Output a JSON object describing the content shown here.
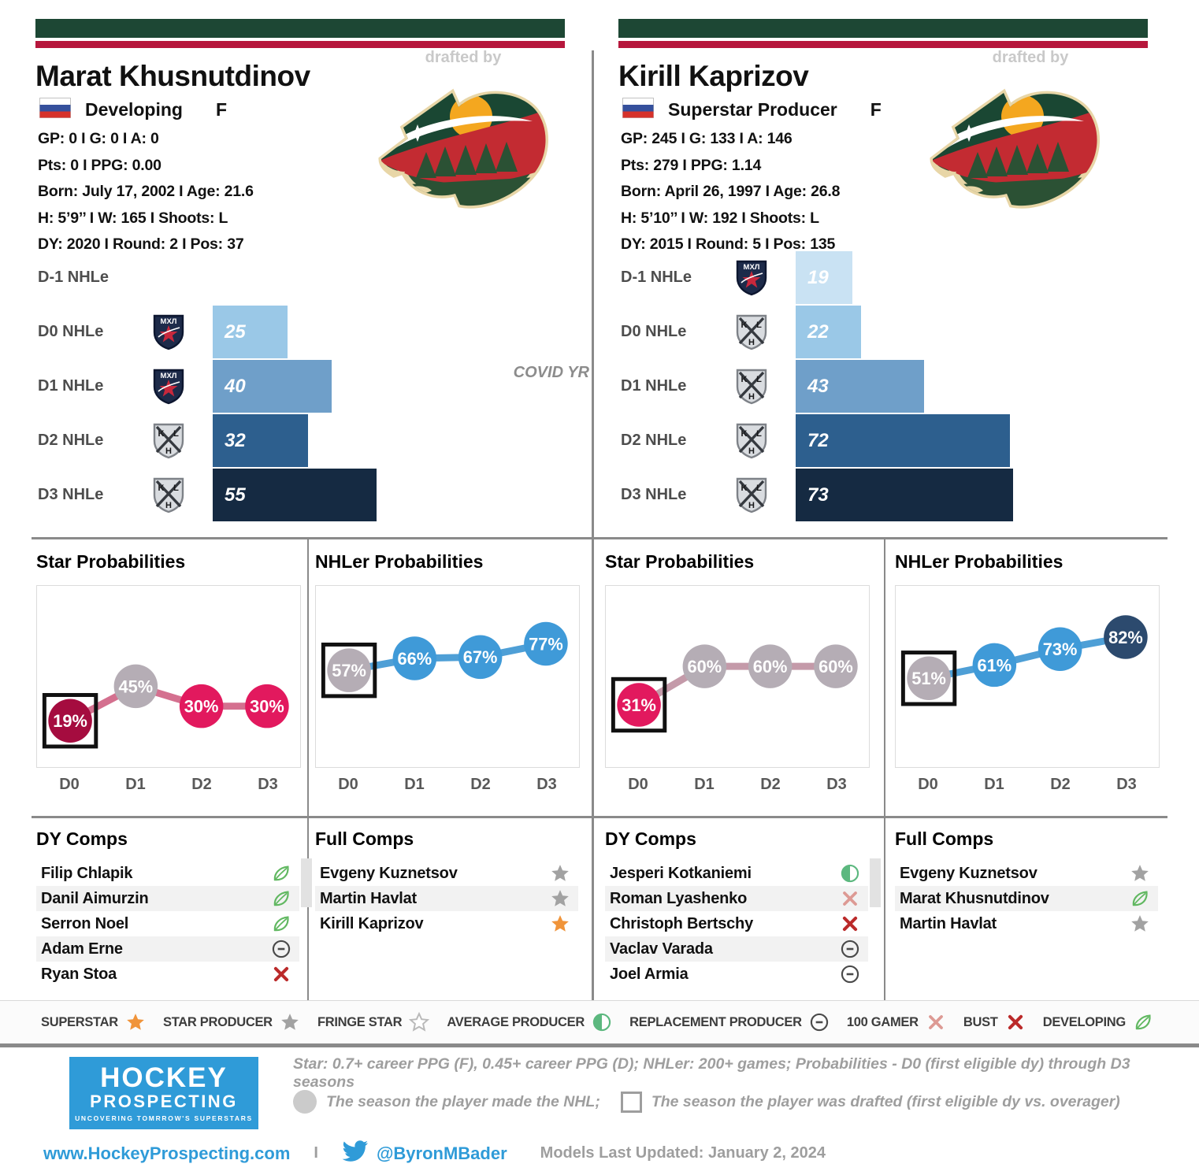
{
  "players": {
    "left": {
      "drafted_by_label": "drafted by",
      "name": "Marat Khusnutdinov",
      "flag": "russia-flag",
      "status": "Developing",
      "position": "F",
      "stats": [
        "GP: 0 I G: 0 I A: 0",
        "Pts: 0 I PPG: 0.00",
        "Born: July 17, 2002 I Age: 21.6",
        "H: 5’9’’ I W: 165 I Shoots: L",
        "DY: 2020 I Round: 2 I Pos: 37"
      ],
      "dy_comps": {
        "title": "DY Comps",
        "rows": [
          {
            "name": "Filip Chlapik",
            "icon": "leaf"
          },
          {
            "name": "Danil Aimurzin",
            "icon": "leaf"
          },
          {
            "name": "Serron Noel",
            "icon": "leaf"
          },
          {
            "name": "Adam Erne",
            "icon": "circle-minus"
          },
          {
            "name": "Ryan Stoa",
            "icon": "x-dark"
          }
        ]
      },
      "full_comps": {
        "title": "Full Comps",
        "rows": [
          {
            "name": "Evgeny Kuznetsov",
            "icon": "star-gray"
          },
          {
            "name": "Martin Havlat",
            "icon": "star-gray"
          },
          {
            "name": "Kirill Kaprizov",
            "icon": "star-orange"
          }
        ]
      }
    },
    "right": {
      "drafted_by_label": "drafted by",
      "name": "Kirill Kaprizov",
      "flag": "russia-flag",
      "status": "Superstar Producer",
      "position": "F",
      "stats": [
        "GP: 245 I G: 133 I A: 146",
        "Pts: 279 I PPG: 1.14",
        "Born: April 26, 1997 I Age: 26.8",
        "H: 5’10’’ I W: 192 I Shoots: L",
        "DY: 2015 I Round: 5 I Pos: 135"
      ],
      "dy_comps": {
        "title": "DY Comps",
        "rows": [
          {
            "name": "Jesperi Kotkaniemi",
            "icon": "half-circle"
          },
          {
            "name": "Roman Lyashenko",
            "icon": "x-light"
          },
          {
            "name": "Christoph Bertschy",
            "icon": "x-dark"
          },
          {
            "name": "Vaclav Varada",
            "icon": "circle-minus"
          },
          {
            "name": "Joel Armia",
            "icon": "circle-minus"
          }
        ]
      },
      "full_comps": {
        "title": "Full Comps",
        "rows": [
          {
            "name": "Evgeny Kuznetsov",
            "icon": "star-gray"
          },
          {
            "name": "Marat Khusnutdinov",
            "icon": "leaf"
          },
          {
            "name": "Martin Havlat",
            "icon": "star-gray"
          }
        ]
      }
    }
  },
  "chart_data": [
    {
      "id": "left_nhle",
      "type": "bar",
      "title": "Marat Khusnutdinov NHLe",
      "categories": [
        "D-1 NHLe",
        "D0 NHLe",
        "D1 NHLe",
        "D2 NHLe",
        "D3 NHLe"
      ],
      "values": [
        null,
        25,
        40,
        32,
        55
      ],
      "leagues": [
        null,
        "mhl",
        "mhl",
        "khl",
        "khl"
      ],
      "colors": [
        null,
        "#9ac8e7",
        "#6f9fc9",
        "#2d5f8e",
        "#152a42"
      ],
      "annotation": "COVID YR",
      "xlim": [
        0,
        120
      ],
      "grid": false
    },
    {
      "id": "right_nhle",
      "type": "bar",
      "title": "Kirill Kaprizov NHLe",
      "categories": [
        "D-1 NHLe",
        "D0 NHLe",
        "D1 NHLe",
        "D2 NHLe",
        "D3 NHLe"
      ],
      "values": [
        19,
        22,
        43,
        72,
        73
      ],
      "leagues": [
        "mhl",
        "khl",
        "khl",
        "khl",
        "khl"
      ],
      "colors": [
        "#c9e2f3",
        "#9ac8e7",
        "#6f9fc9",
        "#2d5f8e",
        "#152a42"
      ],
      "annotation": null,
      "xlim": [
        0,
        120
      ],
      "grid": false
    },
    {
      "id": "left_star",
      "type": "line",
      "title": "Star Probabilities",
      "x": [
        "D0",
        "D1",
        "D2",
        "D3"
      ],
      "values": [
        19,
        45,
        30,
        30
      ],
      "point_colors": [
        "#a50c3f",
        "#b5adb5",
        "#e2195e",
        "#e2195e"
      ],
      "boxed_index": 0,
      "line_color": "#d4708f",
      "ylim": [
        0,
        100
      ],
      "unit": "%"
    },
    {
      "id": "left_nhler",
      "type": "line",
      "title": "NHLer Probabilities",
      "x": [
        "D0",
        "D1",
        "D2",
        "D3"
      ],
      "values": [
        57,
        66,
        67,
        77
      ],
      "point_colors": [
        "#b5adb5",
        "#3f9ad8",
        "#3f9ad8",
        "#3f9ad8"
      ],
      "boxed_index": 0,
      "line_color": "#4e9fd6",
      "ylim": [
        0,
        100
      ],
      "unit": "%"
    },
    {
      "id": "right_star",
      "type": "line",
      "title": "Star Probabilities",
      "x": [
        "D0",
        "D1",
        "D2",
        "D3"
      ],
      "values": [
        31,
        60,
        60,
        60
      ],
      "point_colors": [
        "#e2195e",
        "#b5adb5",
        "#b5adb5",
        "#b5adb5"
      ],
      "boxed_index": 0,
      "line_color": "#c49aa9",
      "ylim": [
        0,
        100
      ],
      "unit": "%"
    },
    {
      "id": "right_nhler",
      "type": "line",
      "title": "NHLer Probabilities",
      "x": [
        "D0",
        "D1",
        "D2",
        "D3"
      ],
      "values": [
        51,
        61,
        73,
        82
      ],
      "point_colors": [
        "#b5adb5",
        "#3f9ad8",
        "#3f9ad8",
        "#2c4a6e"
      ],
      "boxed_index": 0,
      "line_color": "#4e9fd6",
      "ylim": [
        0,
        100
      ],
      "unit": "%"
    }
  ],
  "legend": {
    "items": [
      {
        "label": "SUPERSTAR",
        "icon": "star-orange"
      },
      {
        "label": "STAR PRODUCER",
        "icon": "star-gray"
      },
      {
        "label": "FRINGE STAR",
        "icon": "star-outline"
      },
      {
        "label": "AVERAGE PRODUCER",
        "icon": "half-circle"
      },
      {
        "label": "REPLACEMENT PRODUCER",
        "icon": "circle-minus"
      },
      {
        "label": "100 GAMER",
        "icon": "x-light"
      },
      {
        "label": "BUST",
        "icon": "x-dark"
      },
      {
        "label": "DEVELOPING",
        "icon": "leaf"
      }
    ]
  },
  "footer": {
    "logo_line1": "HOCKEY",
    "logo_line2": "PROSPECTING",
    "logo_tagline": "UNCOVERING TOMRROW'S SUPERSTARS",
    "note1": "Star: 0.7+ career PPG (F), 0.45+ career PPG (D); NHLer: 200+ games; Probabilities - D0 (first eligible dy) through D3 seasons",
    "note2_circle": "The season the player made the NHL;",
    "note2_square": "The season the player was drafted (first eligible dy vs. overager)",
    "website": "www.HockeyProspecting.com",
    "separator": "I",
    "twitter": "@ByronMBader",
    "updated": "Models Last Updated: January 2, 2024",
    "brand_blue": "#2f9bd8"
  }
}
